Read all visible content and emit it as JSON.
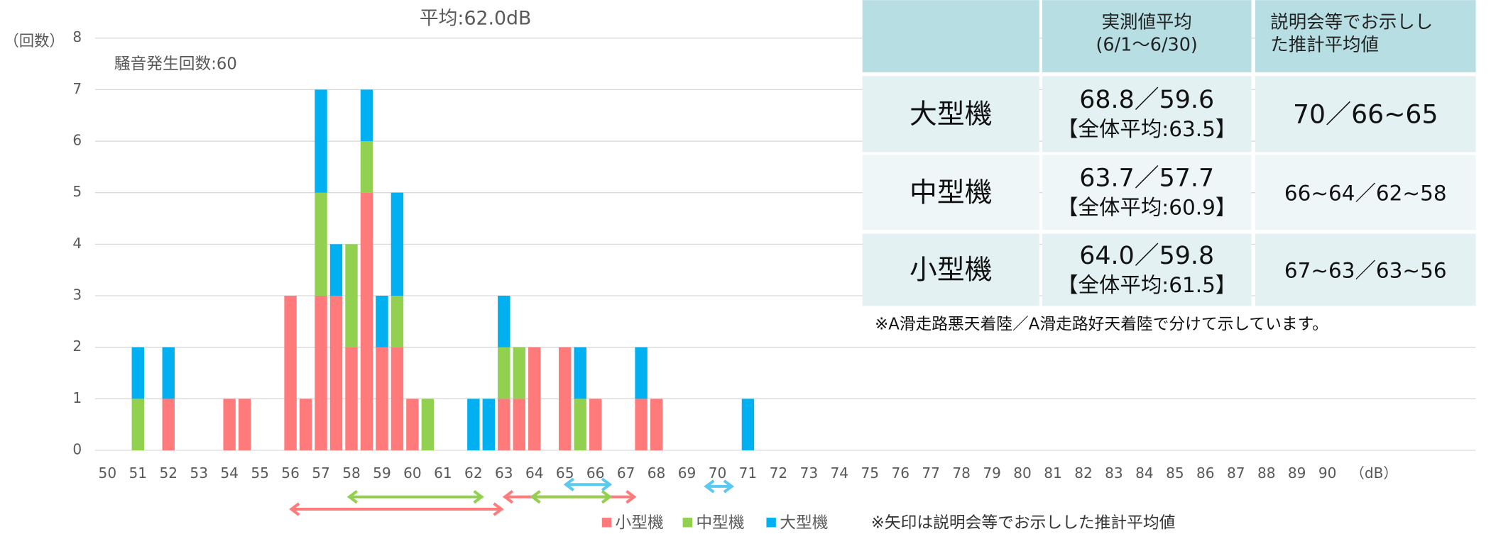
{
  "chart_data": {
    "type": "bar",
    "stacked": true,
    "title": "平均:62.0dB",
    "subtitle": "騒音発生回数:60",
    "y_label": "（回数）",
    "x_label": "（dB）",
    "x": [
      51,
      52,
      54,
      54.5,
      56,
      56.5,
      57,
      57.5,
      58,
      58.5,
      59,
      59.5,
      60,
      60.5,
      62,
      62.5,
      63,
      63.5,
      64,
      65,
      65.5,
      66,
      67.5,
      68,
      71
    ],
    "series": [
      {
        "name": "小型機",
        "color": "#ff7b7b",
        "values": [
          0,
          1,
          1,
          1,
          3,
          1,
          3,
          3,
          2,
          5,
          2,
          2,
          1,
          0,
          0,
          0,
          1,
          1,
          2,
          2,
          0,
          1,
          1,
          1,
          0
        ]
      },
      {
        "name": "中型機",
        "color": "#92d050",
        "values": [
          1,
          0,
          0,
          0,
          0,
          0,
          2,
          0,
          2,
          1,
          0,
          1,
          0,
          1,
          0,
          0,
          1,
          1,
          0,
          0,
          1,
          0,
          0,
          0,
          0
        ]
      },
      {
        "name": "大型機",
        "color": "#00b0f0",
        "values": [
          1,
          1,
          0,
          0,
          0,
          0,
          2,
          1,
          0,
          1,
          1,
          2,
          0,
          0,
          1,
          1,
          1,
          0,
          0,
          0,
          1,
          0,
          1,
          0,
          1
        ]
      }
    ],
    "xlim": [
      50,
      90
    ],
    "xticks": [
      50,
      51,
      52,
      53,
      54,
      55,
      56,
      57,
      58,
      59,
      60,
      61,
      62,
      63,
      64,
      65,
      66,
      67,
      68,
      69,
      70,
      71,
      72,
      73,
      74,
      75,
      76,
      77,
      78,
      79,
      80,
      81,
      82,
      83,
      84,
      85,
      86,
      87,
      88,
      89,
      90
    ],
    "ylim": [
      0,
      8
    ],
    "yticks": [
      0,
      1,
      2,
      3,
      4,
      5,
      6,
      7,
      8
    ],
    "grid": true,
    "ranges": [
      {
        "color": "#ff7b7b",
        "x": [
          56,
          62.95
        ]
      },
      {
        "color": "#ff7b7b",
        "x": [
          63,
          67.3
        ]
      },
      {
        "color": "#92d050",
        "x": [
          57.9,
          62.3
        ]
      },
      {
        "color": "#92d050",
        "x": [
          63.9,
          66.5
        ]
      },
      {
        "color": "#5bc8f0",
        "x": [
          65,
          66.5
        ]
      },
      {
        "color": "#5bc8f0",
        "x": [
          69.6,
          70.5
        ]
      }
    ],
    "legend_note": "※矢印は説明会等でお示しした推計平均値"
  },
  "table": {
    "header": [
      [
        "実測値平均",
        "(6/1〜6/30)"
      ],
      [
        "説明会等でお示しし",
        "た推計平均値"
      ]
    ],
    "rows": [
      {
        "label": "大型機",
        "measured": [
          "68.8／59.6",
          "【全体平均:63.5】"
        ],
        "estimated": "70／66~65"
      },
      {
        "label": "中型機",
        "measured": [
          "63.7／57.7",
          "【全体平均:60.9】"
        ],
        "estimated": "66~64／62~58"
      },
      {
        "label": "小型機",
        "measured": [
          "64.0／59.8",
          "【全体平均:61.5】"
        ],
        "estimated": "67~63／63~56"
      }
    ],
    "note": "※A滑走路悪天着陸／A滑走路好天着陸で分けて示しています。"
  }
}
